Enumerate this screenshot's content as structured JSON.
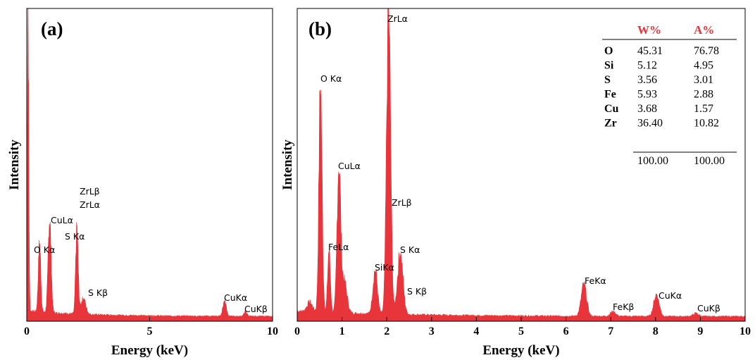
{
  "colors": {
    "spectrum": "#e8343b",
    "axis": "#000000",
    "table_header": "#e8343b"
  },
  "chart_data": [
    {
      "type": "area",
      "panel": "(a)",
      "xlabel": "Energy (keV)",
      "ylabel": "Intensity",
      "xlim": [
        0,
        10
      ],
      "xticks": [
        "0",
        "5",
        "10"
      ],
      "ylim": [
        0,
        100
      ],
      "grid": false,
      "background": 1.5,
      "peaks": [
        {
          "x": 0.05,
          "h": 100,
          "w": 0.03
        },
        {
          "x": 0.52,
          "h": 22,
          "w": 0.05
        },
        {
          "x": 0.93,
          "h": 30,
          "w": 0.06
        },
        {
          "x": 2.04,
          "h": 27,
          "w": 0.05
        },
        {
          "x": 2.3,
          "h": 5,
          "w": 0.1
        },
        {
          "x": 8.05,
          "h": 5,
          "w": 0.07
        },
        {
          "x": 8.9,
          "h": 1.5,
          "w": 0.06
        }
      ],
      "annotations": [
        {
          "text": "O Kα",
          "x": 0.52
        },
        {
          "text": "CuLα",
          "x": 0.93
        },
        {
          "text": "ZrLβ",
          "x": 2.04
        },
        {
          "text": "ZrLα",
          "x": 2.04
        },
        {
          "text": "S Kα",
          "x": 2.04
        },
        {
          "text": "S Kβ",
          "x": 2.45
        },
        {
          "text": "CuKα",
          "x": 8.05
        },
        {
          "text": "CuKβ",
          "x": 8.9
        }
      ]
    },
    {
      "type": "area",
      "panel": "(b)",
      "xlabel": "Energy (keV)",
      "ylabel": "Intensity",
      "xlim": [
        0,
        10
      ],
      "xticks": [
        "0",
        "1",
        "2",
        "3",
        "4",
        "5",
        "6",
        "7",
        "8",
        "9",
        "10"
      ],
      "ylim": [
        0,
        100
      ],
      "grid": false,
      "background": 1.5,
      "peaks": [
        {
          "x": 0.28,
          "h": 3,
          "w": 0.06
        },
        {
          "x": 0.52,
          "h": 74,
          "w": 0.035
        },
        {
          "x": 0.71,
          "h": 20,
          "w": 0.03
        },
        {
          "x": 0.93,
          "h": 47,
          "w": 0.04
        },
        {
          "x": 1.05,
          "h": 10,
          "w": 0.06
        },
        {
          "x": 1.74,
          "h": 14,
          "w": 0.05
        },
        {
          "x": 2.04,
          "h": 98,
          "w": 0.045
        },
        {
          "x": 2.3,
          "h": 20,
          "w": 0.06
        },
        {
          "x": 6.4,
          "h": 10,
          "w": 0.06
        },
        {
          "x": 7.05,
          "h": 1.5,
          "w": 0.06
        },
        {
          "x": 8.02,
          "h": 7,
          "w": 0.06
        },
        {
          "x": 8.9,
          "h": 1,
          "w": 0.06
        }
      ],
      "annotations": [
        {
          "text": "ZrLα",
          "x": 2.04
        },
        {
          "text": "O Kα",
          "x": 0.52
        },
        {
          "text": "CuLα",
          "x": 0.93
        },
        {
          "text": "ZrLβ",
          "x": 2.04
        },
        {
          "text": "FeLα",
          "x": 0.71
        },
        {
          "text": "S Kα",
          "x": 2.3
        },
        {
          "text": "SiKα",
          "x": 1.74
        },
        {
          "text": "S Kβ",
          "x": 2.45
        },
        {
          "text": "FeKα",
          "x": 6.4
        },
        {
          "text": "FeKβ",
          "x": 7.05
        },
        {
          "text": "CuKα",
          "x": 8.02
        },
        {
          "text": "CuKβ",
          "x": 8.9
        }
      ],
      "table": {
        "headers": [
          "W%",
          "A%"
        ],
        "rows": [
          {
            "element": "O",
            "w": "45.31",
            "a": "76.78"
          },
          {
            "element": "Si",
            "w": "5.12",
            "a": "4.95"
          },
          {
            "element": "S",
            "w": "3.56",
            "a": "3.01"
          },
          {
            "element": "Fe",
            "w": "5.93",
            "a": "2.88"
          },
          {
            "element": "Cu",
            "w": "3.68",
            "a": "1.57"
          },
          {
            "element": "Zr",
            "w": "36.40",
            "a": "10.82"
          }
        ],
        "total": {
          "w": "100.00",
          "a": "100.00"
        }
      }
    }
  ]
}
